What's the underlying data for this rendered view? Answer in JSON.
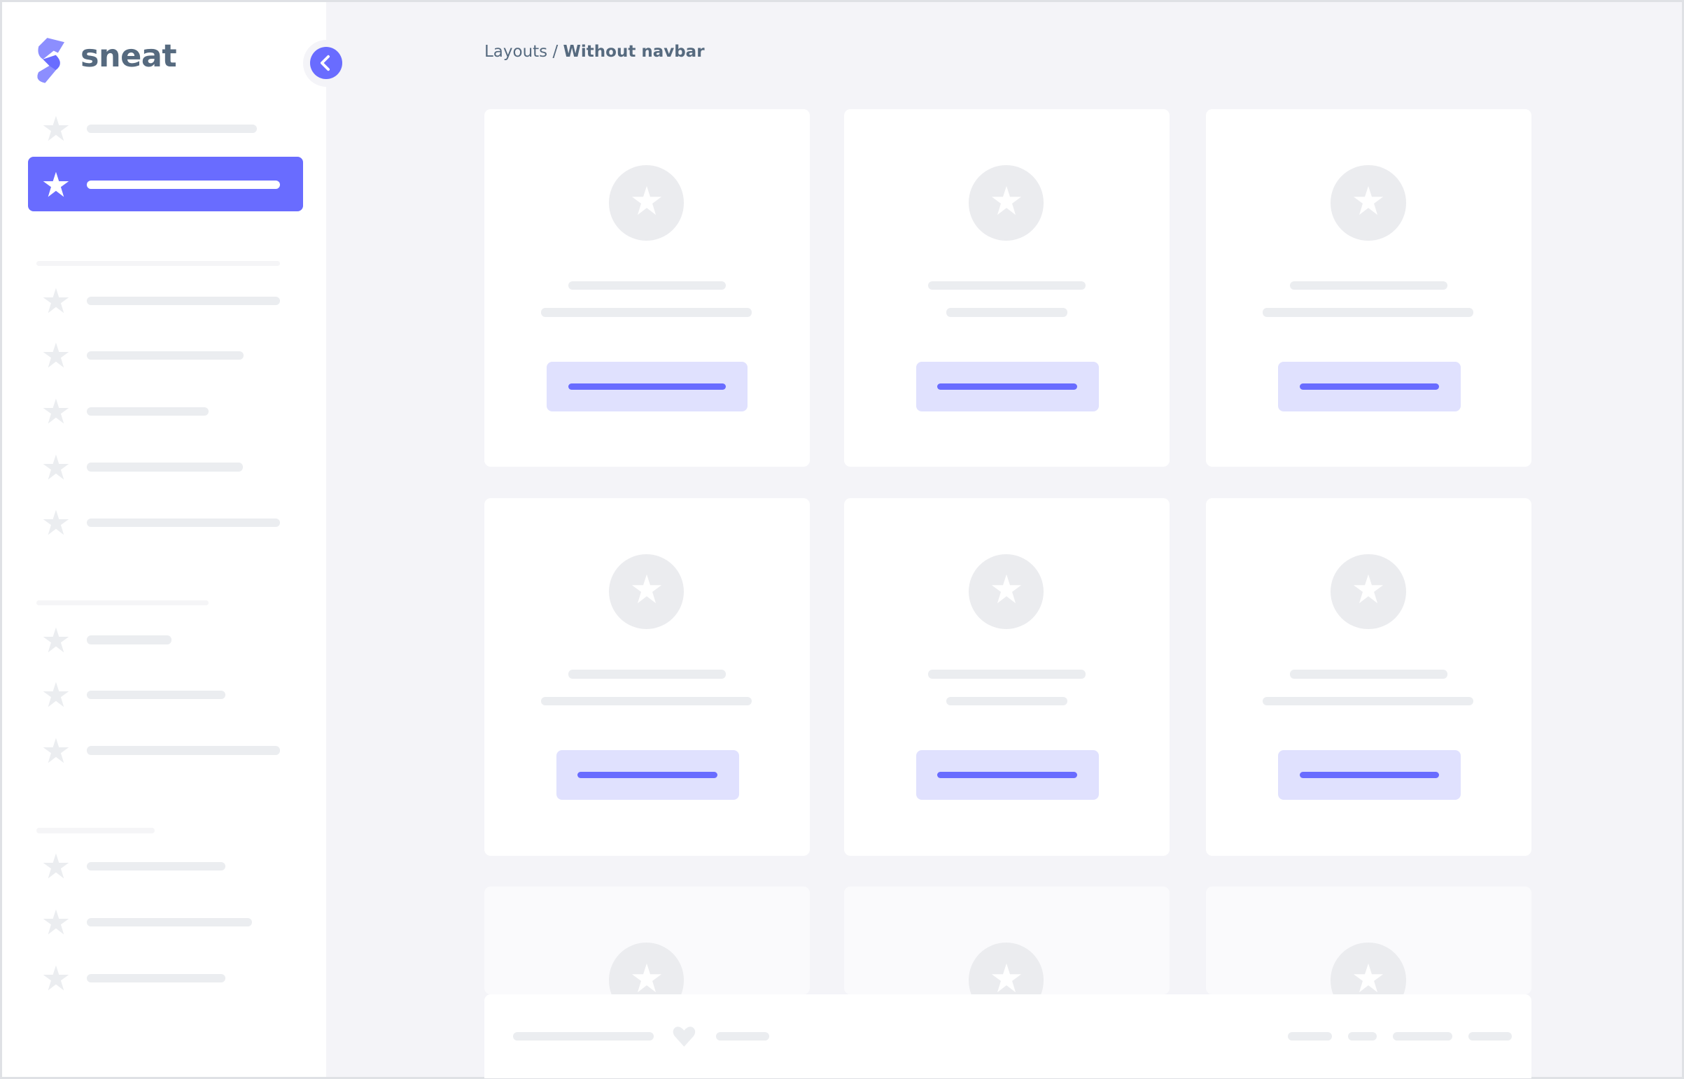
{
  "brand": {
    "name": "sneat",
    "logo_icon": "sneat-logo-icon",
    "accent": "#696cff"
  },
  "breadcrumb": {
    "parent": "Layouts",
    "separator": "/",
    "current": "Without navbar"
  },
  "sidebar": {
    "collapse_icon": "chevron-left-icon",
    "active_index": 1,
    "item_icon": "star-icon"
  },
  "colors": {
    "background": "#f4f4f8",
    "placeholder": "#ebedf0",
    "button_bg": "#e0e1fe"
  },
  "footer": {
    "icon": "heart-icon"
  }
}
